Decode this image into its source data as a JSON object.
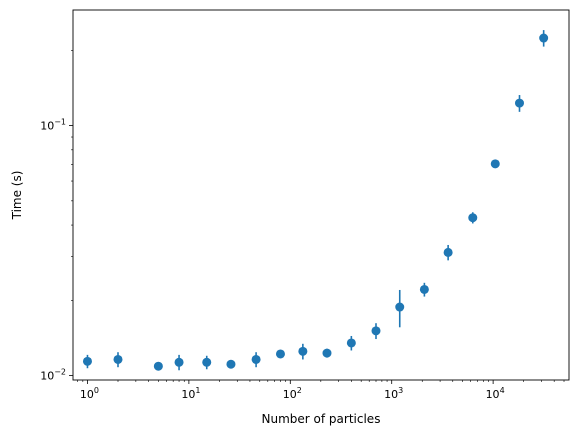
{
  "chart_data": {
    "type": "scatter",
    "title": "",
    "xlabel": "Number of particles",
    "ylabel": "Time (s)",
    "x_scale": "log",
    "y_scale": "log",
    "xlim": [
      0.72,
      56000
    ],
    "ylim": [
      0.0096,
      0.29
    ],
    "x_major_ticks": [
      {
        "value": 1,
        "base": "10",
        "exp": "0"
      },
      {
        "value": 10,
        "base": "10",
        "exp": "1"
      },
      {
        "value": 100,
        "base": "10",
        "exp": "2"
      },
      {
        "value": 1000,
        "base": "10",
        "exp": "3"
      },
      {
        "value": 10000,
        "base": "10",
        "exp": "4"
      }
    ],
    "y_major_ticks": [
      {
        "value": 0.01,
        "base": "10",
        "exp": "−2"
      },
      {
        "value": 0.1,
        "base": "10",
        "exp": "−1"
      }
    ],
    "grid": false,
    "legend": "none",
    "marker_color": "#1f77b4",
    "series": [
      {
        "points": [
          {
            "x": 1,
            "y": 0.0114,
            "err": 0.0007
          },
          {
            "x": 2,
            "y": 0.0116,
            "err": 0.0008
          },
          {
            "x": 5,
            "y": 0.0109,
            "err": 0.0003
          },
          {
            "x": 8,
            "y": 0.0113,
            "err": 0.0008
          },
          {
            "x": 15,
            "y": 0.0113,
            "err": 0.0007
          },
          {
            "x": 26,
            "y": 0.0111,
            "err": 0.0004
          },
          {
            "x": 46,
            "y": 0.0116,
            "err": 0.0008
          },
          {
            "x": 80,
            "y": 0.0122,
            "err": 0.0004
          },
          {
            "x": 133,
            "y": 0.0125,
            "err": 0.0009
          },
          {
            "x": 230,
            "y": 0.0123,
            "err": 0.0005
          },
          {
            "x": 400,
            "y": 0.0135,
            "err": 0.0009
          },
          {
            "x": 700,
            "y": 0.0151,
            "err": 0.0011
          },
          {
            "x": 1200,
            "y": 0.0188,
            "err": 0.0032
          },
          {
            "x": 2100,
            "y": 0.0221,
            "err": 0.0014
          },
          {
            "x": 3600,
            "y": 0.0311,
            "err": 0.0022
          },
          {
            "x": 6300,
            "y": 0.0428,
            "err": 0.0022
          },
          {
            "x": 10500,
            "y": 0.0703,
            "err": 0.0012
          },
          {
            "x": 18200,
            "y": 0.123,
            "err": 0.0095
          },
          {
            "x": 31500,
            "y": 0.224,
            "err": 0.017
          }
        ]
      }
    ]
  }
}
